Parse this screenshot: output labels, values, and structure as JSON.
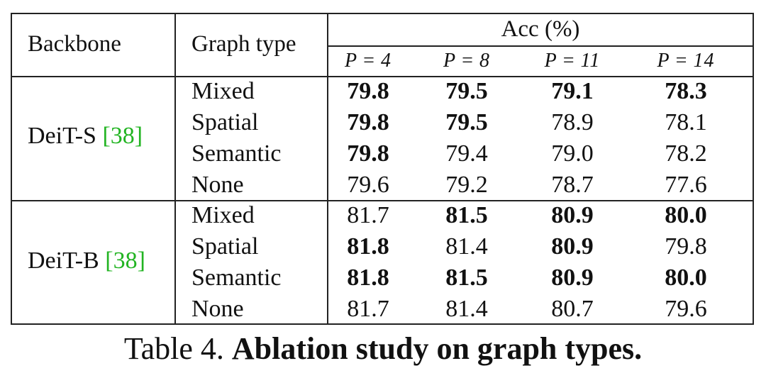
{
  "table": {
    "headers": {
      "backbone": "Backbone",
      "graph_type": "Graph type",
      "acc": "Acc (%)",
      "p_var": "P",
      "p_eq": "=",
      "p_values": [
        "4",
        "8",
        "11",
        "14"
      ]
    },
    "groups": [
      {
        "backbone": "DeiT-S",
        "cite": "[38]",
        "rows": [
          {
            "type": "Mixed",
            "values": [
              "79.8",
              "79.5",
              "79.1",
              "78.3"
            ],
            "bold": [
              true,
              true,
              true,
              true
            ]
          },
          {
            "type": "Spatial",
            "values": [
              "79.8",
              "79.5",
              "78.9",
              "78.1"
            ],
            "bold": [
              true,
              true,
              false,
              false
            ]
          },
          {
            "type": "Semantic",
            "values": [
              "79.8",
              "79.4",
              "79.0",
              "78.2"
            ],
            "bold": [
              true,
              false,
              false,
              false
            ]
          },
          {
            "type": "None",
            "values": [
              "79.6",
              "79.2",
              "78.7",
              "77.6"
            ],
            "bold": [
              false,
              false,
              false,
              false
            ]
          }
        ]
      },
      {
        "backbone": "DeiT-B",
        "cite": "[38]",
        "rows": [
          {
            "type": "Mixed",
            "values": [
              "81.7",
              "81.5",
              "80.9",
              "80.0"
            ],
            "bold": [
              false,
              true,
              true,
              true
            ]
          },
          {
            "type": "Spatial",
            "values": [
              "81.8",
              "81.4",
              "80.9",
              "79.8"
            ],
            "bold": [
              true,
              false,
              true,
              false
            ]
          },
          {
            "type": "Semantic",
            "values": [
              "81.8",
              "81.5",
              "80.9",
              "80.0"
            ],
            "bold": [
              true,
              true,
              true,
              true
            ]
          },
          {
            "type": "None",
            "values": [
              "81.7",
              "81.4",
              "80.7",
              "79.6"
            ],
            "bold": [
              false,
              false,
              false,
              false
            ]
          }
        ]
      }
    ]
  },
  "caption": {
    "label": "Table 4.",
    "text": "Ablation study on graph types."
  },
  "colors": {
    "citation": "#22b422",
    "rule": "#222222"
  }
}
